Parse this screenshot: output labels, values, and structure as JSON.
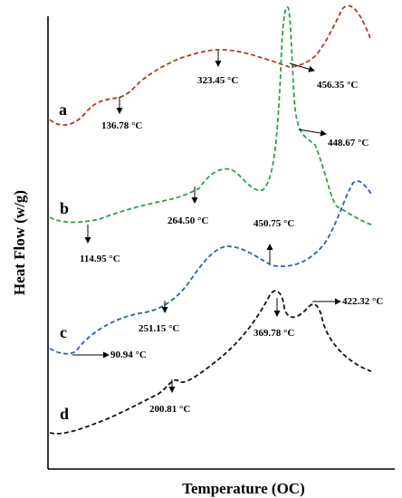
{
  "chart_data": {
    "type": "line",
    "title": "",
    "xlabel": "Temperature (OC)",
    "ylabel": "Heat Flow (w/g)",
    "x_ticks": [],
    "y_ticks": [],
    "grid": false,
    "series": [
      {
        "name": "a",
        "color": "#b5381f",
        "annotations": [
          {
            "text": "136.78 °C"
          },
          {
            "text": "323.45 °C"
          },
          {
            "text": "456.35 °C"
          },
          {
            "text": "448.67 °C"
          }
        ]
      },
      {
        "name": "b",
        "color": "#2e9e52",
        "annotations": [
          {
            "text": "114.95 °C"
          },
          {
            "text": "264.50 °C"
          }
        ]
      },
      {
        "name": "c",
        "color": "#2b5fb0",
        "annotations": [
          {
            "text": "90.94 °C"
          },
          {
            "text": "251.15 °C"
          },
          {
            "text": "450.75 °C"
          }
        ]
      },
      {
        "name": "d",
        "color": "#111111",
        "annotations": [
          {
            "text": "200.81 °C"
          },
          {
            "text": "369.78 °C"
          },
          {
            "text": "422.32 °C"
          }
        ]
      }
    ]
  }
}
